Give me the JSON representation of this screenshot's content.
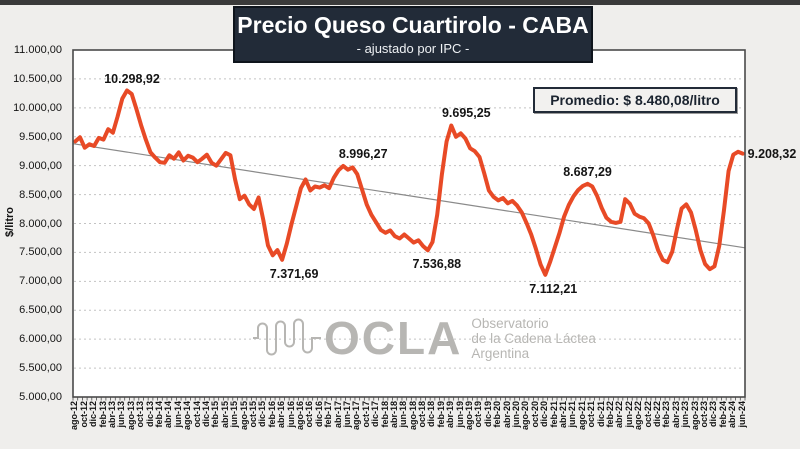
{
  "header": {
    "title": "Precio Queso Cuartirolo - CABA",
    "subtitle": "- ajustado por IPC -"
  },
  "callout": {
    "text": "Promedio: $ 8.480,08/litro"
  },
  "watermark": {
    "logo": "OCLA",
    "line1": "Observatorio",
    "line2": "de la Cadena Láctea",
    "line3": "Argentina"
  },
  "y_axis": {
    "title": "$/litro",
    "ticks": [
      "11.000,00",
      "10.500,00",
      "10.000,00",
      "9.500,00",
      "9.000,00",
      "8.500,00",
      "8.000,00",
      "7.500,00",
      "7.000,00",
      "6.500,00",
      "6.000,00",
      "5.500,00",
      "5.000,00"
    ]
  },
  "chart_data": {
    "type": "line",
    "title": "Precio Queso Cuartirolo - CABA",
    "subtitle": "- ajustado por IPC -",
    "ylabel": "$/litro",
    "ylim": [
      5000,
      11000
    ],
    "y_tick_step": 500,
    "x_tick_every": 2,
    "grid": "horizontal-dashed",
    "legend": false,
    "series_color": "#e84a26",
    "average_value": 8480.08,
    "trend_line": {
      "start": 9380,
      "end": 7580,
      "color": "#8a8a8a"
    },
    "x": [
      "ago-12",
      "sep-12",
      "oct-12",
      "nov-12",
      "dic-12",
      "ene-13",
      "feb-13",
      "mar-13",
      "abr-13",
      "may-13",
      "jun-13",
      "jul-13",
      "ago-13",
      "sep-13",
      "oct-13",
      "nov-13",
      "dic-13",
      "ene-14",
      "feb-14",
      "mar-14",
      "abr-14",
      "may-14",
      "jun-14",
      "jul-14",
      "ago-14",
      "sep-14",
      "oct-14",
      "nov-14",
      "dic-14",
      "ene-15",
      "feb-15",
      "mar-15",
      "abr-15",
      "may-15",
      "jun-15",
      "jul-15",
      "ago-15",
      "sep-15",
      "oct-15",
      "nov-15",
      "dic-15",
      "ene-16",
      "feb-16",
      "mar-16",
      "abr-16",
      "may-16",
      "jun-16",
      "jul-16",
      "ago-16",
      "sep-16",
      "oct-16",
      "nov-16",
      "dic-16",
      "ene-17",
      "feb-17",
      "mar-17",
      "abr-17",
      "may-17",
      "jun-17",
      "jul-17",
      "ago-17",
      "sep-17",
      "oct-17",
      "nov-17",
      "dic-17",
      "ene-18",
      "feb-18",
      "mar-18",
      "abr-18",
      "may-18",
      "jun-18",
      "jul-18",
      "ago-18",
      "sep-18",
      "oct-18",
      "nov-18",
      "dic-18",
      "ene-19",
      "feb-19",
      "mar-19",
      "abr-19",
      "may-19",
      "jun-19",
      "jul-19",
      "ago-19",
      "sep-19",
      "oct-19",
      "nov-19",
      "dic-19",
      "ene-20",
      "feb-20",
      "mar-20",
      "abr-20",
      "may-20",
      "jun-20",
      "jul-20",
      "ago-20",
      "sep-20",
      "oct-20",
      "nov-20",
      "dic-20",
      "ene-21",
      "feb-21",
      "mar-21",
      "abr-21",
      "may-21",
      "jun-21",
      "jul-21",
      "ago-21",
      "sep-21",
      "oct-21",
      "nov-21",
      "dic-21",
      "ene-22",
      "feb-22",
      "mar-22",
      "abr-22",
      "may-22",
      "jun-22",
      "jul-22",
      "ago-22",
      "sep-22",
      "oct-22",
      "nov-22",
      "dic-22",
      "ene-23",
      "feb-23",
      "mar-23",
      "abr-23",
      "may-23",
      "jun-23",
      "jul-23",
      "ago-23",
      "sep-23",
      "oct-23",
      "nov-23",
      "dic-23",
      "ene-24",
      "feb-24",
      "mar-24",
      "abr-24",
      "may-24",
      "jun-24"
    ],
    "values": [
      9420,
      9490,
      9310,
      9370,
      9340,
      9480,
      9450,
      9630,
      9570,
      9850,
      10160,
      10298.92,
      10240,
      9980,
      9700,
      9450,
      9230,
      9140,
      9060,
      9050,
      9180,
      9120,
      9230,
      9090,
      9170,
      9140,
      9060,
      9120,
      9190,
      9050,
      9000,
      9110,
      9220,
      9180,
      8760,
      8420,
      8480,
      8330,
      8250,
      8450,
      8060,
      7620,
      7450,
      7540,
      7371.69,
      7650,
      7990,
      8300,
      8610,
      8760,
      8570,
      8640,
      8620,
      8660,
      8610,
      8790,
      8920,
      8996.27,
      8930,
      8970,
      8850,
      8590,
      8330,
      8150,
      8020,
      7890,
      7840,
      7880,
      7780,
      7740,
      7810,
      7740,
      7670,
      7710,
      7610,
      7536.88,
      7680,
      8150,
      8850,
      9420,
      9695.25,
      9500,
      9560,
      9470,
      9300,
      9250,
      9150,
      8870,
      8570,
      8460,
      8400,
      8440,
      8350,
      8390,
      8310,
      8190,
      8010,
      7810,
      7560,
      7290,
      7112.21,
      7330,
      7580,
      7830,
      8120,
      8320,
      8470,
      8580,
      8650,
      8687.29,
      8640,
      8480,
      8270,
      8100,
      8030,
      8010,
      8030,
      8420,
      8340,
      8170,
      8120,
      8090,
      8000,
      7790,
      7540,
      7370,
      7330,
      7510,
      7900,
      8260,
      8330,
      8190,
      7890,
      7540,
      7300,
      7210,
      7260,
      7610,
      8220,
      8910,
      9190,
      9240,
      9208.32
    ],
    "annotations": [
      {
        "index": 11,
        "x": "jul-13",
        "text": "10.298,92",
        "pos": "above",
        "dx": 5
      },
      {
        "index": 44,
        "x": "abr-16",
        "text": "7.371,69",
        "pos": "below",
        "dx": 12
      },
      {
        "index": 57,
        "x": "may-17",
        "text": "8.996,27",
        "pos": "above",
        "dx": 20
      },
      {
        "index": 75,
        "x": "nov-18",
        "text": "7.536,88",
        "pos": "below",
        "dx": 9
      },
      {
        "index": 80,
        "x": "abr-19",
        "text": "9.695,25",
        "pos": "above",
        "dx": 15
      },
      {
        "index": 100,
        "x": "dic-20",
        "text": "7.112,21",
        "pos": "below",
        "dx": 8
      },
      {
        "index": 109,
        "x": "sep-21",
        "text": "8.687,29",
        "pos": "above",
        "dx": 0
      },
      {
        "index": 142,
        "x": "jun-24",
        "text": "9.208,32",
        "pos": "right",
        "dx": 0
      }
    ]
  }
}
